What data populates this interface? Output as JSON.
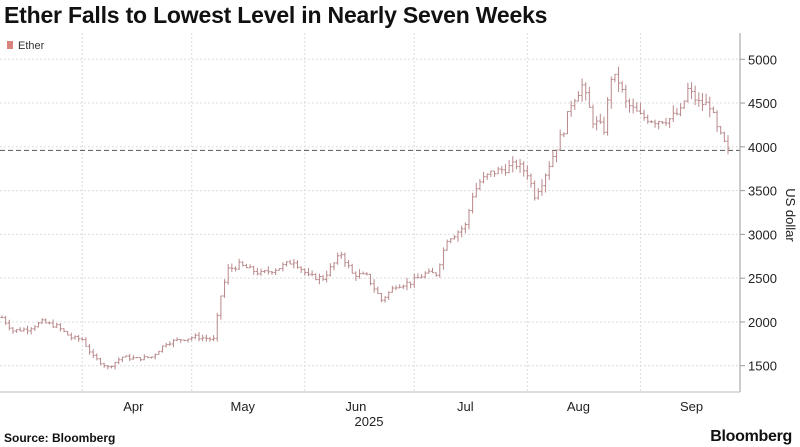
{
  "title": "Ether Falls to Lowest Level in Nearly Seven Weeks",
  "source": "Source: Bloomberg",
  "brand": "Bloomberg",
  "chart_data": {
    "type": "ohlc",
    "title": "Ether Falls to Lowest Level in Nearly Seven Weeks",
    "ylabel": "US dollar",
    "xlabel": "",
    "year_label": "2025",
    "legend": [
      {
        "name": "Ether",
        "color": "#d9827e"
      }
    ],
    "legend_position": "top-left",
    "ylim": [
      1200,
      5300
    ],
    "yticks": [
      1500,
      2000,
      2500,
      3000,
      3500,
      4000,
      4500,
      5000
    ],
    "reference_line": 3960,
    "grid": true,
    "series_color": "#b9888a",
    "x_start": "2025-03-10",
    "x_end": "2025-09-25",
    "month_labels": [
      {
        "label": "Apr",
        "date": "2025-04-01"
      },
      {
        "label": "May",
        "date": "2025-05-01"
      },
      {
        "label": "Jun",
        "date": "2025-06-01"
      },
      {
        "label": "Jul",
        "date": "2025-07-01"
      },
      {
        "label": "Aug",
        "date": "2025-08-01"
      },
      {
        "label": "Sep",
        "date": "2025-09-01"
      }
    ],
    "month_lines": [
      "2025-04-01",
      "2025-05-01",
      "2025-06-01",
      "2025-07-01",
      "2025-08-01",
      "2025-09-01"
    ],
    "close_anchors": [
      [
        "2025-03-10",
        2050
      ],
      [
        "2025-03-13",
        1900
      ],
      [
        "2025-03-17",
        1920
      ],
      [
        "2025-03-21",
        2000
      ],
      [
        "2025-03-25",
        1950
      ],
      [
        "2025-03-29",
        1820
      ],
      [
        "2025-04-01",
        1800
      ],
      [
        "2025-04-04",
        1600
      ],
      [
        "2025-04-08",
        1480
      ],
      [
        "2025-04-12",
        1600
      ],
      [
        "2025-04-16",
        1580
      ],
      [
        "2025-04-20",
        1600
      ],
      [
        "2025-04-24",
        1760
      ],
      [
        "2025-04-28",
        1800
      ],
      [
        "2025-05-02",
        1830
      ],
      [
        "2025-05-07",
        1800
      ],
      [
        "2025-05-09",
        2300
      ],
      [
        "2025-05-11",
        2600
      ],
      [
        "2025-05-14",
        2650
      ],
      [
        "2025-05-20",
        2550
      ],
      [
        "2025-05-25",
        2620
      ],
      [
        "2025-05-29",
        2700
      ],
      [
        "2025-06-02",
        2520
      ],
      [
        "2025-06-06",
        2500
      ],
      [
        "2025-06-11",
        2780
      ],
      [
        "2025-06-14",
        2550
      ],
      [
        "2025-06-18",
        2520
      ],
      [
        "2025-06-22",
        2250
      ],
      [
        "2025-06-26",
        2420
      ],
      [
        "2025-06-30",
        2450
      ],
      [
        "2025-07-04",
        2550
      ],
      [
        "2025-07-07",
        2550
      ],
      [
        "2025-07-10",
        2950
      ],
      [
        "2025-07-12",
        3000
      ],
      [
        "2025-07-15",
        3100
      ],
      [
        "2025-07-17",
        3450
      ],
      [
        "2025-07-19",
        3600
      ],
      [
        "2025-07-22",
        3700
      ],
      [
        "2025-07-26",
        3750
      ],
      [
        "2025-07-29",
        3800
      ],
      [
        "2025-08-01",
        3700
      ],
      [
        "2025-08-03",
        3450
      ],
      [
        "2025-08-05",
        3600
      ],
      [
        "2025-08-08",
        3900
      ],
      [
        "2025-08-11",
        4200
      ],
      [
        "2025-08-13",
        4500
      ],
      [
        "2025-08-16",
        4700
      ],
      [
        "2025-08-19",
        4300
      ],
      [
        "2025-08-22",
        4200
      ],
      [
        "2025-08-24",
        4800
      ],
      [
        "2025-08-26",
        4750
      ],
      [
        "2025-08-28",
        4500
      ],
      [
        "2025-09-01",
        4350
      ],
      [
        "2025-09-05",
        4300
      ],
      [
        "2025-09-09",
        4320
      ],
      [
        "2025-09-12",
        4400
      ],
      [
        "2025-09-14",
        4650
      ],
      [
        "2025-09-17",
        4500
      ],
      [
        "2025-09-20",
        4480
      ],
      [
        "2025-09-22",
        4200
      ],
      [
        "2025-09-25",
        3950
      ]
    ]
  }
}
